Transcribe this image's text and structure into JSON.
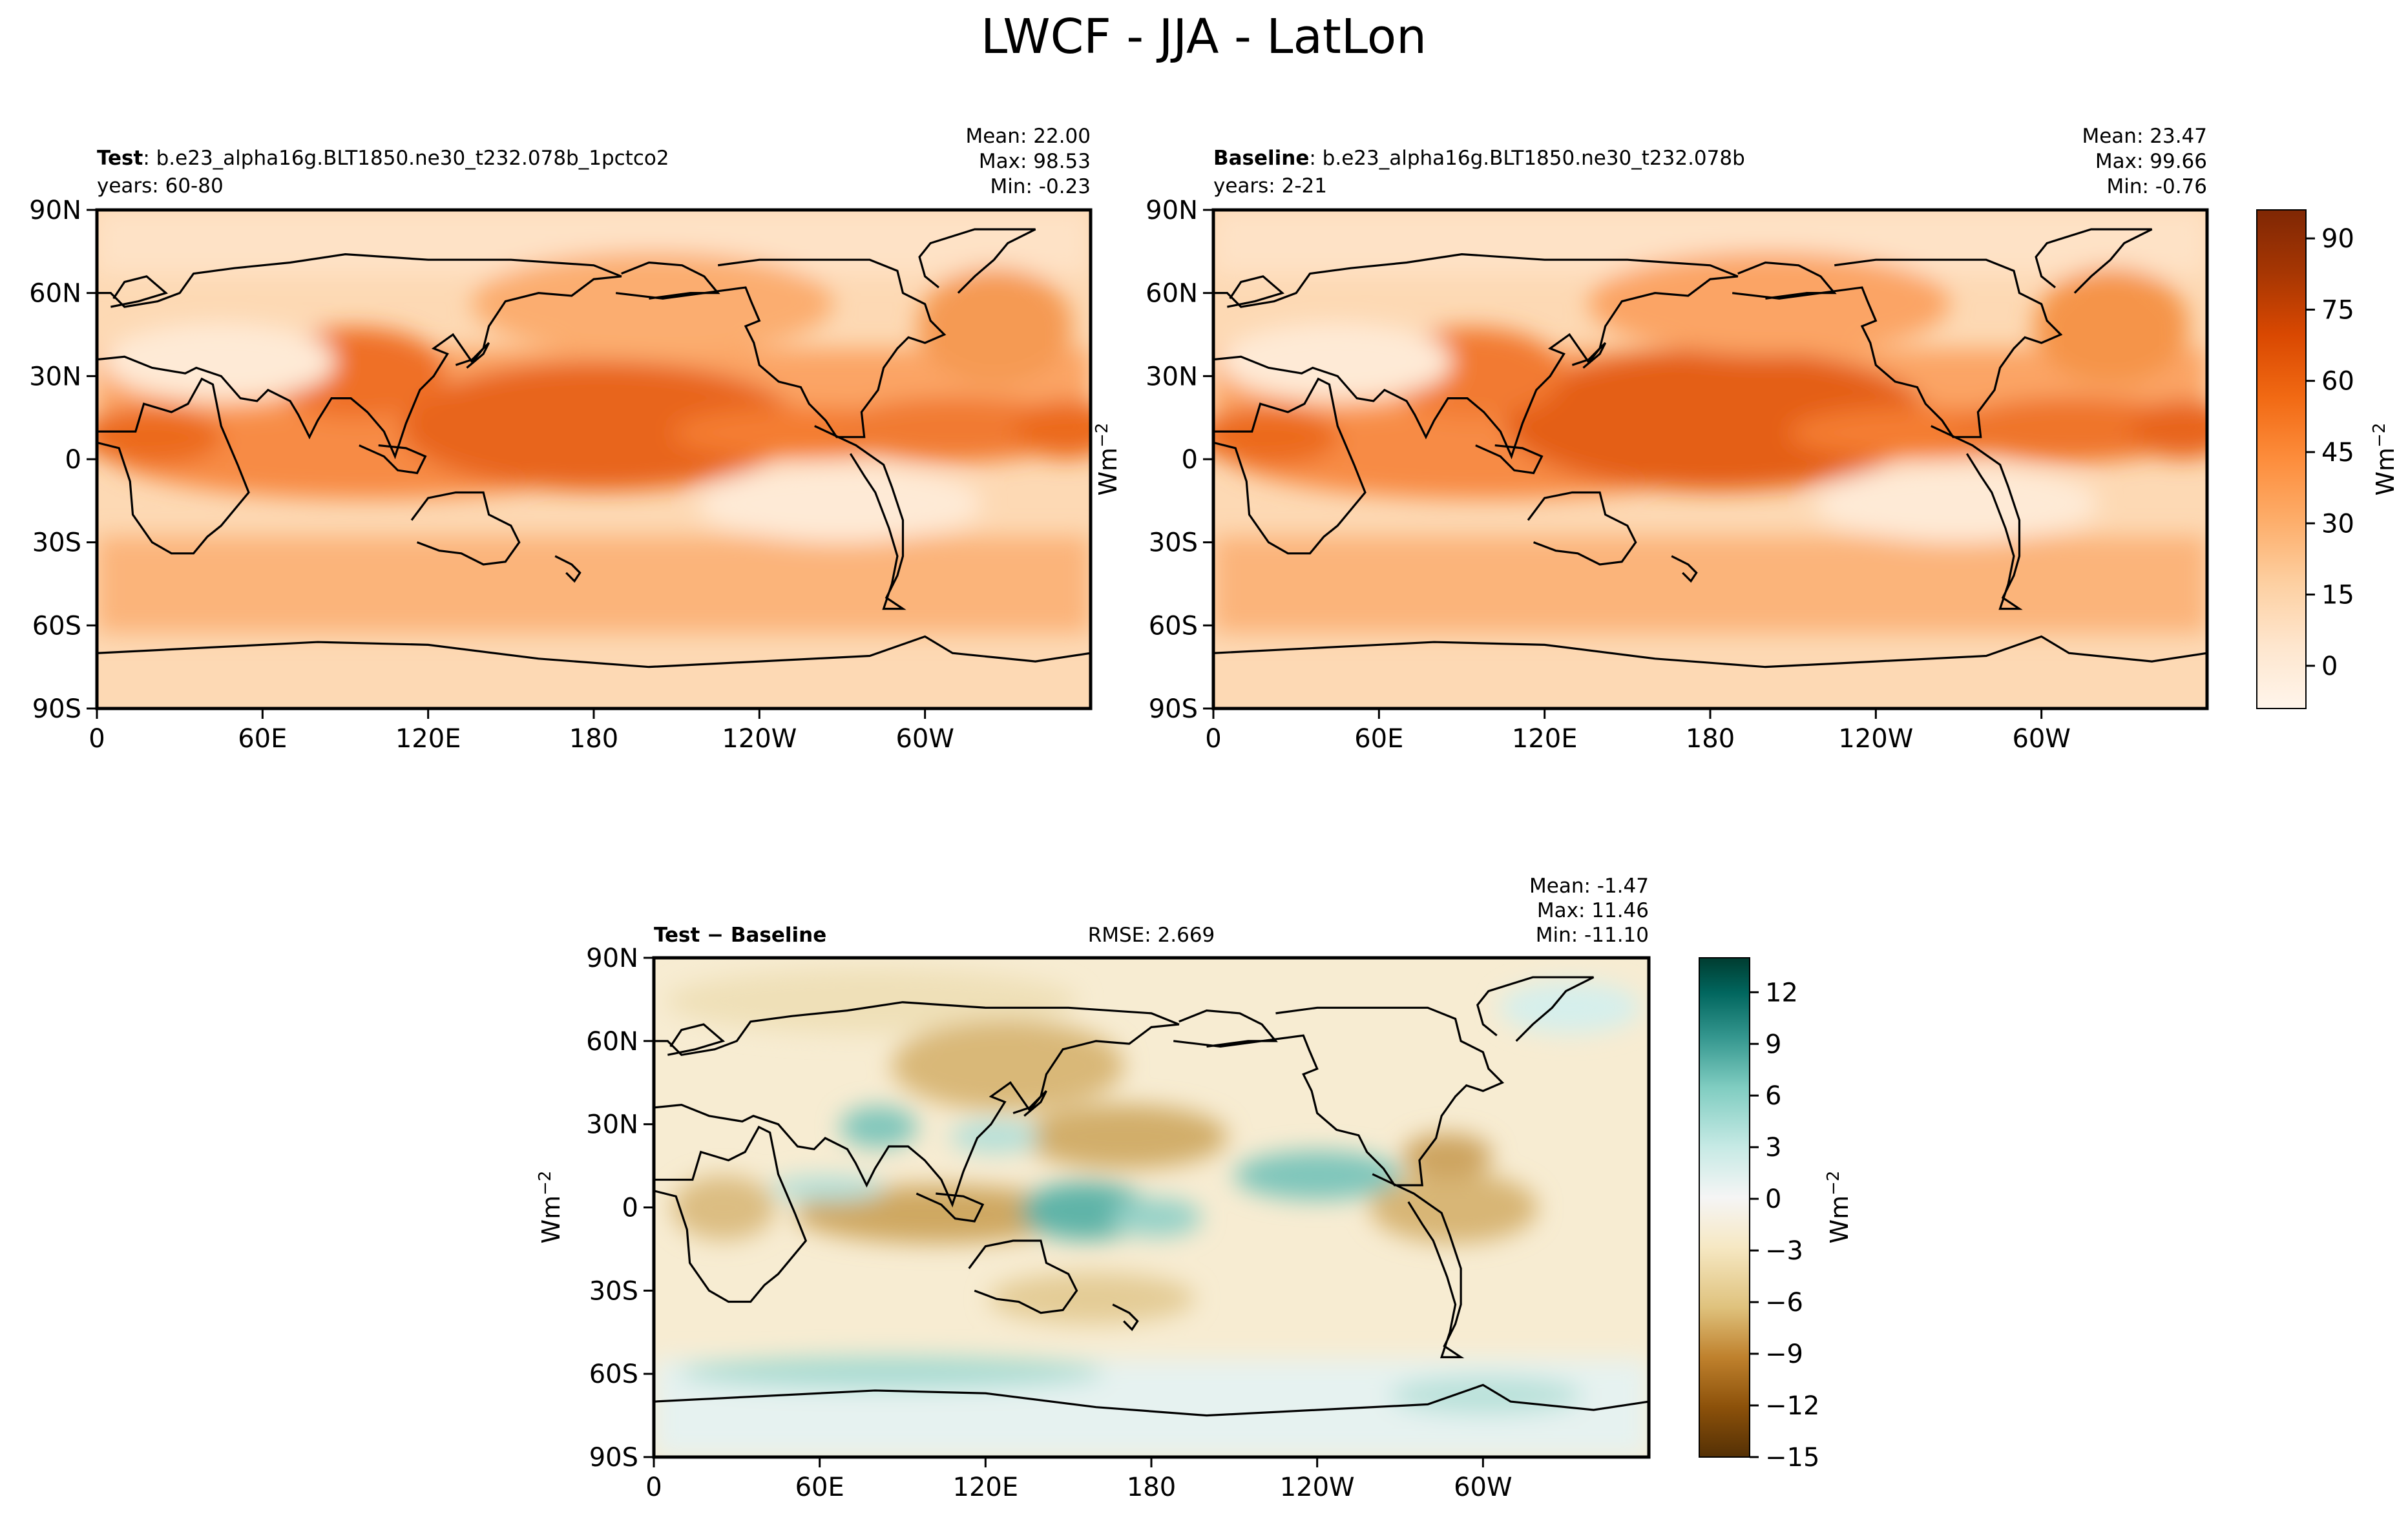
{
  "figure": {
    "title": "LWCF - JJA - LatLon",
    "colorbar_unit": "Wm$^{-2}$"
  },
  "chart_data": [
    {
      "type": "heatmap",
      "panel": "test",
      "label_bold": "Test",
      "label_rest": ": b.e23_alpha16g.BLT1850.ne30_t232.078b_1pctco2",
      "subtitle": "years: 60-80",
      "stats": [
        "Mean: 22.00",
        "Max: 98.53",
        "Min: -0.23"
      ],
      "ylabel": "Wm$^{-2}$",
      "x_ticks": [
        "0",
        "60E",
        "120E",
        "180",
        "120W",
        "60W"
      ],
      "y_ticks": [
        "90N",
        "60N",
        "30N",
        "0",
        "30S",
        "60S",
        "90S"
      ],
      "xlim": [
        0,
        360
      ],
      "ylim": [
        -90,
        90
      ],
      "colormap": "Oranges",
      "colors": [
        "#fff5eb",
        "#fee6ce",
        "#fdd0a2",
        "#fdae6b",
        "#fd8d3c",
        "#f16913",
        "#d94801",
        "#a63603",
        "#7f2704"
      ]
    },
    {
      "type": "heatmap",
      "panel": "baseline",
      "label_bold": "Baseline",
      "label_rest": ": b.e23_alpha16g.BLT1850.ne30_t232.078b",
      "subtitle": "years: 2-21",
      "stats": [
        "Mean: 23.47",
        "Max: 99.66",
        "Min: -0.76"
      ],
      "x_ticks": [
        "0",
        "60E",
        "120E",
        "180",
        "120W",
        "60W"
      ],
      "y_ticks": [
        "90N",
        "60N",
        "30N",
        "0",
        "30S",
        "60S",
        "90S"
      ],
      "xlim": [
        0,
        360
      ],
      "ylim": [
        -90,
        90
      ],
      "colormap": "Oranges",
      "colorbar": {
        "ticks": [
          "90",
          "75",
          "60",
          "45",
          "30",
          "15",
          "0"
        ],
        "range": [
          -9,
          96
        ],
        "label": "Wm$^{-2}$"
      }
    },
    {
      "type": "heatmap",
      "panel": "difference",
      "label_bold": "Test − Baseline",
      "rmse": "RMSE: 2.669",
      "stats": [
        "Mean: -1.47",
        "Max: 11.46",
        "Min: -11.10"
      ],
      "ylabel": "Wm$^{-2}$",
      "x_ticks": [
        "0",
        "60E",
        "120E",
        "180",
        "120W",
        "60W"
      ],
      "y_ticks": [
        "90N",
        "60N",
        "30N",
        "0",
        "30S",
        "60S",
        "90S"
      ],
      "xlim": [
        0,
        360
      ],
      "ylim": [
        -90,
        90
      ],
      "colormap": "BrBG",
      "colors": [
        "#543005",
        "#8c510a",
        "#bf812d",
        "#dfc27d",
        "#f6e8c3",
        "#f5f5f5",
        "#c7eae5",
        "#80cdc1",
        "#35978f",
        "#01665e",
        "#003c30"
      ],
      "colorbar": {
        "ticks": [
          "12",
          "9",
          "6",
          "3",
          "0",
          "−3",
          "−6",
          "−9",
          "−12",
          "−15"
        ],
        "range": [
          -15,
          14
        ],
        "label": "Wm$^{-2}$"
      }
    }
  ]
}
